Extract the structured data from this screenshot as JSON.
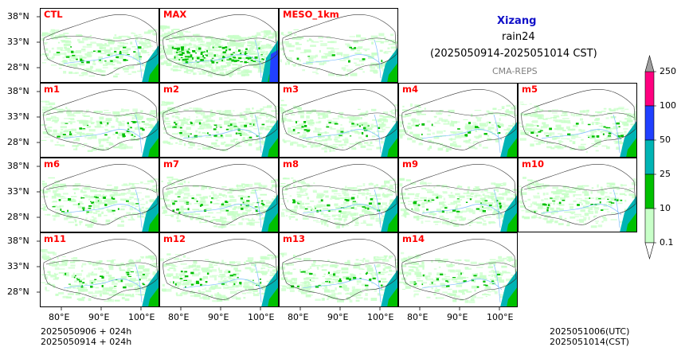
{
  "title": {
    "region": "Xizang",
    "variable": "rain24",
    "period": "(2025050914-2025051014 CST)",
    "source": "CMA-REPS"
  },
  "panels": [
    {
      "label": "CTL",
      "intensity": 1.0
    },
    {
      "label": "MAX",
      "intensity": 1.9
    },
    {
      "label": "MESO_1km",
      "intensity": 0.6
    },
    {
      "label": "m1",
      "intensity": 1.0
    },
    {
      "label": "m2",
      "intensity": 1.1
    },
    {
      "label": "m3",
      "intensity": 1.0
    },
    {
      "label": "m4",
      "intensity": 0.8
    },
    {
      "label": "m5",
      "intensity": 0.9
    },
    {
      "label": "m6",
      "intensity": 1.0
    },
    {
      "label": "m7",
      "intensity": 1.1
    },
    {
      "label": "m8",
      "intensity": 1.0
    },
    {
      "label": "m9",
      "intensity": 1.0
    },
    {
      "label": "m10",
      "intensity": 0.9
    },
    {
      "label": "m11",
      "intensity": 1.0
    },
    {
      "label": "m12",
      "intensity": 1.0
    },
    {
      "label": "m13",
      "intensity": 1.0
    },
    {
      "label": "m14",
      "intensity": 0.9
    }
  ],
  "axes": {
    "lat_ticks": [
      "38°N",
      "33°N",
      "28°N"
    ],
    "lon_ticks": [
      "80°E",
      "90°E",
      "100°E"
    ]
  },
  "colorbar": {
    "levels": [
      "0.1",
      "10",
      "25",
      "50",
      "100",
      "250"
    ],
    "colors": [
      "#c8ffc8",
      "#00c000",
      "#00b4b4",
      "#2040ff",
      "#ff0080"
    ],
    "extend_color": "#a0a0a0"
  },
  "footer": {
    "init_line1": "2025050906  +  024h",
    "init_line2": "2025050914  +  024h",
    "valid_line1": "2025051006(UTC)",
    "valid_line2": "2025051014(CST)"
  },
  "colors": {
    "label": "#ff0000",
    "region_title": "#1010c8",
    "light_rain": "#c8ffc8",
    "moderate_rain": "#00c000",
    "heavy_rain": "#00b4b4",
    "storm": "#2040ff",
    "extreme": "#ff0080",
    "river": "#7fbfff",
    "border": "#333333"
  }
}
